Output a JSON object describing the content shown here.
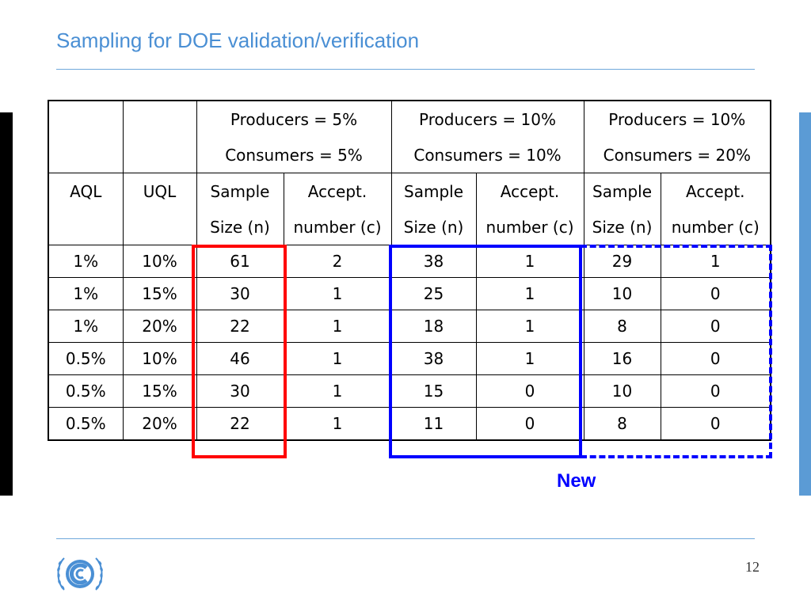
{
  "slide": {
    "title": "Sampling for DOE validation/verification",
    "page_number": "12",
    "new_label": "New"
  },
  "table": {
    "groups": [
      {
        "producers": "Producers = 5%",
        "consumers": "Consumers = 5%"
      },
      {
        "producers": "Producers = 10%",
        "consumers": "Consumers = 10%"
      },
      {
        "producers": "Producers = 10%",
        "consumers": "Consumers = 20%"
      }
    ],
    "col_headers": {
      "aql": "AQL",
      "uql": "UQL",
      "sample_top": "Sample",
      "sample_bottom": "Size (n)",
      "accept_top": "Accept.",
      "accept_bottom": "number (c)"
    },
    "rows": [
      [
        "1%",
        "10%",
        "61",
        "2",
        "38",
        "1",
        "29",
        "1"
      ],
      [
        "1%",
        "15%",
        "30",
        "1",
        "25",
        "1",
        "10",
        "0"
      ],
      [
        "1%",
        "20%",
        "22",
        "1",
        "18",
        "1",
        "8",
        "0"
      ],
      [
        "0.5%",
        "10%",
        "46",
        "1",
        "38",
        "1",
        "16",
        "0"
      ],
      [
        "0.5%",
        "15%",
        "30",
        "1",
        "15",
        "0",
        "10",
        "0"
      ],
      [
        "0.5%",
        "20%",
        "22",
        "1",
        "11",
        "0",
        "8",
        "0"
      ]
    ]
  },
  "colors": {
    "title": "#4a8fd4",
    "highlight_red": "#ff0000",
    "highlight_blue": "#0000ff",
    "side_bar_right": "#5b9bd5"
  },
  "icons": {
    "logo": "unfccc-logo-icon"
  }
}
